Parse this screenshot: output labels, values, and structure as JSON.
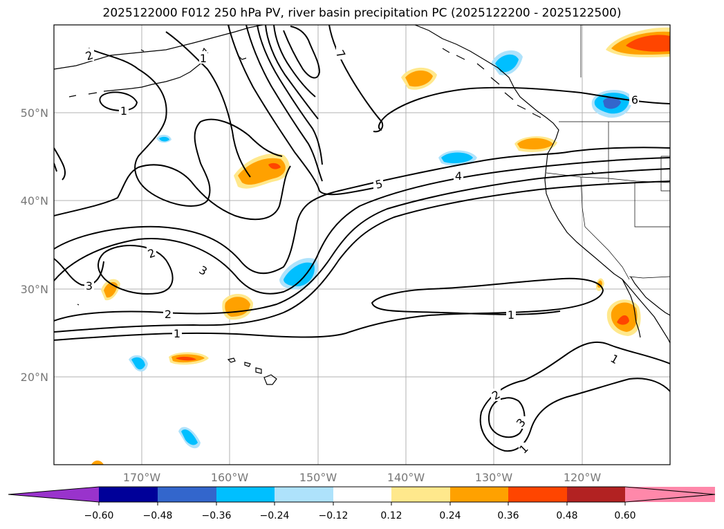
{
  "title": "2025122000 F012 250 hPa PV, river basin precipitation PC (2025122200 - 2025122500)",
  "map": {
    "lat_labels": [
      "50°N",
      "40°N",
      "30°N",
      "20°N"
    ],
    "lon_labels": [
      "170°W",
      "160°W",
      "150°W",
      "140°W",
      "130°W",
      "120°W"
    ]
  },
  "contour_labels": [
    "2",
    "1",
    "1",
    "7",
    "5",
    "4",
    "6",
    "2",
    "3",
    "3",
    "2",
    "1",
    "1",
    "1",
    "2",
    "3",
    "1"
  ],
  "colorbar": {
    "ticks": [
      "−0.60",
      "−0.48",
      "−0.36",
      "−0.24",
      "−0.12",
      "0.12",
      "0.24",
      "0.36",
      "0.48",
      "0.60"
    ],
    "colors": [
      "#9933cc",
      "#000099",
      "#3366cc",
      "#00bfff",
      "#aee2fb",
      "#ffffff",
      "#ffe88c",
      "#ffa100",
      "#ff4500",
      "#b22222",
      "#ff88aa"
    ]
  }
}
